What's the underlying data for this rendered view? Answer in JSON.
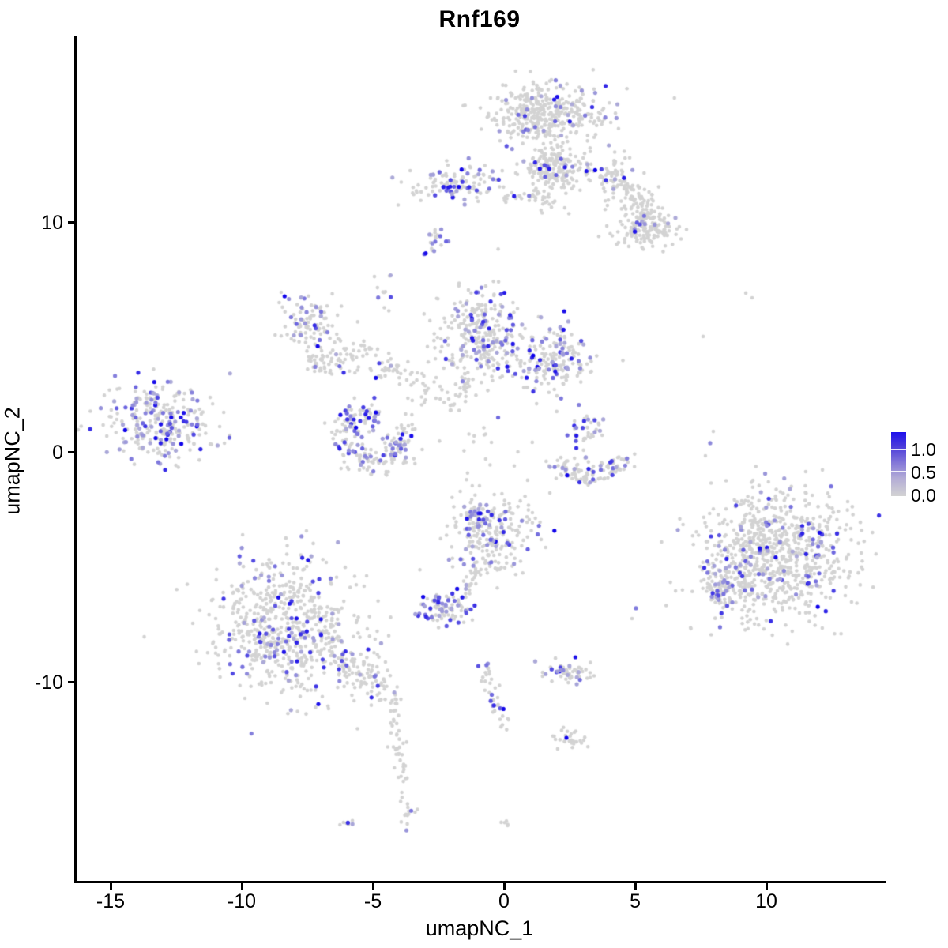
{
  "page": {
    "background": "#FFFFFF"
  },
  "chart_data": {
    "type": "scatter",
    "title": "Rnf169",
    "xlabel": "umapNC_1",
    "ylabel": "umapNC_2",
    "x_ticks": [
      -15,
      -10,
      -5,
      0,
      5,
      10
    ],
    "x_tick_labels": [
      "-15",
      "-10",
      "-5",
      "0",
      "5",
      "10"
    ],
    "y_ticks": [
      10,
      0,
      -10
    ],
    "y_tick_labels": [
      "10",
      "0",
      "-10"
    ],
    "x_range": [
      -16.4,
      14.5
    ],
    "y_range": [
      -18.4,
      18.1
    ],
    "grid": false,
    "legend": {
      "position": "right",
      "labels": [
        "1.0",
        "0.5",
        "0.0"
      ],
      "values": [
        1.0,
        0.5,
        0.0
      ],
      "low_color": "#D3D3D3",
      "high_color": "#0D00EB"
    },
    "point_color_low": "#D3D3D3",
    "point_color_high": "#0D00EB",
    "seed": 42,
    "clusters": [
      {
        "name": "top-main-upper",
        "shape": "blob",
        "x": 1.57,
        "y": 14.67,
        "sx": 1.15,
        "sy": 0.68,
        "n": 400,
        "f": 0.08
      },
      {
        "name": "top-main-lower",
        "shape": "blob",
        "x": 1.87,
        "y": 12.37,
        "sx": 0.63,
        "sy": 0.55,
        "n": 220,
        "f": 0.07
      },
      {
        "name": "top-right-arm",
        "shape": "line",
        "x": 3.77,
        "y": 12.61,
        "x2": 6.17,
        "y2": 9.52,
        "jit": 0.4,
        "n": 190,
        "f": 0.06
      },
      {
        "name": "top-right-arm-end",
        "shape": "blob",
        "x": 5.18,
        "y": 9.62,
        "sx": 0.51,
        "sy": 0.38,
        "n": 110,
        "f": 0.07
      },
      {
        "name": "top-left-band",
        "shape": "blob",
        "x": -1.69,
        "y": 11.65,
        "sx": 0.9,
        "sy": 0.38,
        "n": 120,
        "f": 0.22
      },
      {
        "name": "top-left-band-trail",
        "shape": "line",
        "x": 0.06,
        "y": 11.2,
        "x2": 2.05,
        "y2": 10.82,
        "jit": 0.2,
        "n": 35,
        "f": 0.1
      },
      {
        "name": "small-below-band",
        "shape": "blob",
        "x": -2.59,
        "y": 9.14,
        "sx": 0.22,
        "sy": 0.3,
        "n": 20,
        "f": 0.35
      },
      {
        "name": "tiny-upper-mid",
        "shape": "blob",
        "x": -4.52,
        "y": 7.01,
        "sx": 0.18,
        "sy": 0.42,
        "n": 11,
        "f": 0.3
      },
      {
        "name": "mid-left-upper",
        "shape": "blob",
        "x": -7.35,
        "y": 5.6,
        "sx": 0.55,
        "sy": 0.5,
        "n": 95,
        "f": 0.18
      },
      {
        "name": "mid-left-lower",
        "shape": "blob",
        "x": -6.69,
        "y": 3.99,
        "sx": 0.5,
        "sy": 0.42,
        "n": 60,
        "f": 0.14
      },
      {
        "name": "mid-left-trail",
        "shape": "line",
        "x": -6.05,
        "y": 4.64,
        "x2": -3.55,
        "y2": 3.23,
        "jit": 0.35,
        "n": 65,
        "f": 0.06
      },
      {
        "name": "central",
        "shape": "blob",
        "x": -0.84,
        "y": 4.98,
        "sx": 0.8,
        "sy": 1.0,
        "n": 300,
        "f": 0.16
      },
      {
        "name": "central-tail",
        "shape": "line",
        "x": -1.3,
        "y": 3.23,
        "x2": -1.99,
        "y2": 1.79,
        "jit": 0.15,
        "n": 25,
        "f": 0.1
      },
      {
        "name": "central-right",
        "shape": "blob",
        "x": 1.87,
        "y": 3.99,
        "sx": 0.75,
        "sy": 0.7,
        "n": 190,
        "f": 0.22
      },
      {
        "name": "central-sparse-left",
        "shape": "blob",
        "x": -2.8,
        "y": 2.54,
        "sx": 0.55,
        "sy": 0.5,
        "n": 30,
        "f": 0.05
      },
      {
        "name": "central-sparse-mid",
        "shape": "blob",
        "x": -0.69,
        "y": 0.48,
        "sx": 0.8,
        "sy": 0.8,
        "n": 16,
        "f": 0.06
      },
      {
        "name": "far-left",
        "shape": "blob",
        "x": -13.1,
        "y": 1.31,
        "sx": 1.0,
        "sy": 0.85,
        "n": 280,
        "f": 0.38
      },
      {
        "name": "left-crescent",
        "shape": "ring",
        "x": -4.97,
        "y": 0.55,
        "r": 1.15,
        "th": 0.32,
        "a1": 1.3,
        "a2": 6.9,
        "n": 210,
        "f": 0.3
      },
      {
        "name": "right-small-stem",
        "shape": "blob",
        "x": 3.13,
        "y": 0.79,
        "sx": 0.32,
        "sy": 0.55,
        "n": 45,
        "f": 0.28
      },
      {
        "name": "right-smile-left",
        "shape": "line",
        "x": 1.96,
        "y": -0.41,
        "x2": 3.16,
        "y2": -1.2,
        "jit": 0.22,
        "n": 55,
        "f": 0.2
      },
      {
        "name": "right-smile-right",
        "shape": "line",
        "x": 3.16,
        "y": -1.2,
        "x2": 4.55,
        "y2": -0.48,
        "jit": 0.22,
        "n": 55,
        "f": 0.22
      },
      {
        "name": "lower-center",
        "shape": "blob",
        "x": -0.39,
        "y": -3.64,
        "sx": 0.85,
        "sy": 1.0,
        "n": 230,
        "f": 0.15
      },
      {
        "name": "lower-center-clump",
        "shape": "blob",
        "x": -1.05,
        "y": -2.71,
        "sx": 0.3,
        "sy": 0.28,
        "n": 40,
        "f": 0.55
      },
      {
        "name": "lower-center-trail",
        "shape": "line",
        "x": -0.87,
        "y": -4.6,
        "x2": -1.48,
        "y2": -6.22,
        "jit": 0.12,
        "n": 22,
        "f": 0.1
      },
      {
        "name": "small-dense-mid",
        "shape": "blob",
        "x": -2.26,
        "y": -6.8,
        "sx": 0.5,
        "sy": 0.35,
        "n": 95,
        "f": 0.4
      },
      {
        "name": "bottom-left-main",
        "shape": "blob",
        "x": -8.37,
        "y": -7.59,
        "sx": 1.45,
        "sy": 1.5,
        "n": 630,
        "f": 0.15
      },
      {
        "name": "bottom-left-tail",
        "shape": "line",
        "x": -6.93,
        "y": -7.84,
        "x2": -4.4,
        "y2": -10.65,
        "jit": 0.38,
        "n": 130,
        "f": 0.12
      },
      {
        "name": "bottom-left-neck",
        "shape": "line",
        "x": -4.25,
        "y": -10.93,
        "x2": -3.77,
        "y2": -14.78,
        "jit": 0.13,
        "n": 45,
        "f": 0.07
      },
      {
        "name": "bottom-left-neck-end",
        "shape": "blob",
        "x": -3.64,
        "y": -15.53,
        "sx": 0.18,
        "sy": 0.35,
        "n": 16,
        "f": 0.12
      },
      {
        "name": "right-main",
        "shape": "blob",
        "x": 10.3,
        "y": -4.5,
        "sx": 1.45,
        "sy": 1.35,
        "n": 860,
        "f": 0.1
      },
      {
        "name": "right-main-protrusion",
        "shape": "blob",
        "x": 8.37,
        "y": -6.01,
        "sx": 0.45,
        "sy": 0.6,
        "n": 80,
        "f": 0.22
      },
      {
        "name": "bottom-mid-band",
        "shape": "blob",
        "x": 2.41,
        "y": -9.55,
        "sx": 0.5,
        "sy": 0.25,
        "n": 55,
        "f": 0.3
      },
      {
        "name": "bottom-mid-trail",
        "shape": "line",
        "x": -0.78,
        "y": -9.21,
        "x2": -0.06,
        "y2": -12.03,
        "jit": 0.16,
        "n": 38,
        "f": 0.1
      },
      {
        "name": "bottom-small",
        "shape": "blob",
        "x": 2.44,
        "y": -12.51,
        "sx": 0.32,
        "sy": 0.22,
        "n": 28,
        "f": 0.04
      },
      {
        "name": "bottom-tiny-center",
        "shape": "blob",
        "x": 0.06,
        "y": -16.12,
        "sx": 0.1,
        "sy": 0.12,
        "n": 5,
        "f": 0.3
      },
      {
        "name": "bottom-tiny-left",
        "shape": "blob",
        "x": -5.96,
        "y": -16.19,
        "sx": 0.16,
        "sy": 0.1,
        "n": 7,
        "f": 0.45
      }
    ],
    "outlier_points": [
      {
        "x": 1.11,
        "y": 4.19,
        "v": 1.3
      },
      {
        "x": 2.38,
        "y": -12.44,
        "v": 1.3
      },
      {
        "x": -11.9,
        "y": 2.58,
        "v": 0.5
      },
      {
        "x": -11.69,
        "y": 2.23,
        "v": 0.55
      },
      {
        "x": -10.84,
        "y": 1.1,
        "v": 0
      },
      {
        "x": -10.66,
        "y": 0.38,
        "v": 0
      },
      {
        "x": 9.22,
        "y": 6.91,
        "v": 0
      },
      {
        "x": 9.46,
        "y": 6.7,
        "v": 0
      },
      {
        "x": 7.59,
        "y": 5.02,
        "v": 0
      },
      {
        "x": 7.98,
        "y": 0.89,
        "v": 0
      },
      {
        "x": 7.86,
        "y": 0.38,
        "v": 0.45
      },
      {
        "x": 7.68,
        "y": -0.17,
        "v": 0
      },
      {
        "x": 5.03,
        "y": -6.8,
        "v": 0.55
      },
      {
        "x": 4.88,
        "y": -7.25,
        "v": 0
      }
    ]
  }
}
